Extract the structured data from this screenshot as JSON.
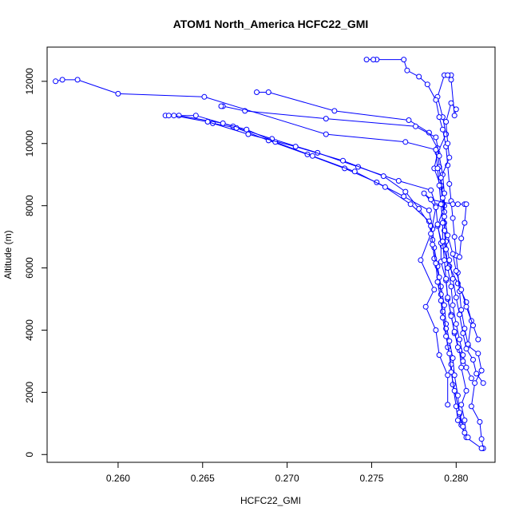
{
  "chart_data": {
    "type": "scatter",
    "title": "ATOM1 North_America HCFC22_GMI",
    "xlabel": "HCFC22_GMI",
    "ylabel": "Altitude (m)",
    "xlim": [
      0.2558,
      0.2823
    ],
    "ylim": [
      -250,
      13100
    ],
    "x_ticks": [
      0.26,
      0.265,
      0.27,
      0.275,
      0.28
    ],
    "x_tick_labels": [
      "0.260",
      "0.265",
      "0.270",
      "0.275",
      "0.280"
    ],
    "y_ticks": [
      0,
      2000,
      4000,
      6000,
      8000,
      10000,
      12000
    ],
    "y_tick_labels": [
      "0",
      "2000",
      "4000",
      "6000",
      "8000",
      "10000",
      "12000"
    ],
    "grid": false,
    "legend": "none",
    "series_color": "#0000ff",
    "series": [
      {
        "points": [
          [
            0.2816,
            200
          ],
          [
            0.2815,
            500
          ],
          [
            0.2814,
            1050
          ],
          [
            0.2809,
            1550
          ],
          [
            0.2811,
            2300
          ],
          [
            0.2815,
            2700
          ],
          [
            0.2813,
            3250
          ],
          [
            0.2807,
            3500
          ],
          [
            0.2809,
            4300
          ],
          [
            0.2806,
            4900
          ],
          [
            0.2801,
            5500
          ],
          [
            0.2796,
            6050
          ],
          [
            0.2792,
            6700
          ],
          [
            0.2789,
            7350
          ],
          [
            0.2793,
            8000
          ],
          [
            0.2791,
            8600
          ],
          [
            0.2787,
            9200
          ],
          [
            0.2789,
            9700
          ],
          [
            0.2794,
            10300
          ],
          [
            0.2792,
            10850
          ],
          [
            0.2789,
            11500
          ],
          [
            0.2793,
            12200
          ],
          [
            0.2797,
            12200
          ]
        ]
      },
      {
        "points": [
          [
            0.2815,
            200
          ],
          [
            0.2806,
            550
          ],
          [
            0.2805,
            1100
          ],
          [
            0.2803,
            1600
          ],
          [
            0.2806,
            2050
          ],
          [
            0.2803,
            2800
          ],
          [
            0.2802,
            3350
          ],
          [
            0.2799,
            3900
          ],
          [
            0.2797,
            4500
          ],
          [
            0.2795,
            5000
          ],
          [
            0.2794,
            5600
          ],
          [
            0.2791,
            6200
          ],
          [
            0.2791,
            6800
          ],
          [
            0.2789,
            7400
          ],
          [
            0.2788,
            8000
          ],
          [
            0.2785,
            8500
          ],
          [
            0.2766,
            8800
          ],
          [
            0.2742,
            9250
          ],
          [
            0.2718,
            9700
          ],
          [
            0.2691,
            10150
          ],
          [
            0.2668,
            10550
          ],
          [
            0.2646,
            10900
          ],
          [
            0.2628,
            10900
          ]
        ]
      },
      {
        "points": [
          [
            0.2807,
            550
          ],
          [
            0.2803,
            950
          ],
          [
            0.2802,
            1300
          ],
          [
            0.2801,
            1900
          ],
          [
            0.2799,
            2550
          ],
          [
            0.2798,
            3100
          ],
          [
            0.2796,
            3650
          ],
          [
            0.2794,
            4200
          ],
          [
            0.2793,
            4800
          ],
          [
            0.2791,
            5400
          ],
          [
            0.2789,
            6050
          ],
          [
            0.2787,
            6650
          ],
          [
            0.2786,
            7250
          ],
          [
            0.2784,
            7850
          ],
          [
            0.2769,
            8300
          ],
          [
            0.2753,
            8750
          ],
          [
            0.2734,
            9200
          ],
          [
            0.2712,
            9650
          ],
          [
            0.2689,
            10100
          ],
          [
            0.267,
            10500
          ],
          [
            0.2656,
            10650
          ]
        ]
      },
      {
        "points": [
          [
            0.2805,
            700
          ],
          [
            0.2801,
            1100
          ],
          [
            0.28,
            1550
          ],
          [
            0.2798,
            2250
          ],
          [
            0.2797,
            2900
          ],
          [
            0.2795,
            3450
          ],
          [
            0.2794,
            4050
          ],
          [
            0.2792,
            4600
          ],
          [
            0.2791,
            5150
          ],
          [
            0.279,
            5700
          ],
          [
            0.2787,
            6300
          ],
          [
            0.2786,
            6900
          ],
          [
            0.2784,
            7500
          ],
          [
            0.2773,
            8050
          ],
          [
            0.2758,
            8600
          ],
          [
            0.274,
            9100
          ],
          [
            0.2715,
            9600
          ],
          [
            0.2693,
            10050
          ],
          [
            0.2676,
            10450
          ],
          [
            0.2662,
            10650
          ],
          [
            0.2636,
            10900
          ],
          [
            0.263,
            10900
          ]
        ]
      },
      {
        "points": [
          [
            0.2804,
            900
          ],
          [
            0.2802,
            1350
          ],
          [
            0.2799,
            2050
          ],
          [
            0.2797,
            2650
          ],
          [
            0.2796,
            3250
          ],
          [
            0.2794,
            3800
          ],
          [
            0.2792,
            4400
          ],
          [
            0.2791,
            4950
          ],
          [
            0.2789,
            5550
          ],
          [
            0.2788,
            6150
          ],
          [
            0.2786,
            6750
          ],
          [
            0.2785,
            7350
          ],
          [
            0.2778,
            7900
          ],
          [
            0.277,
            8450
          ],
          [
            0.2757,
            8950
          ],
          [
            0.2733,
            9450
          ],
          [
            0.2705,
            9900
          ],
          [
            0.2677,
            10300
          ],
          [
            0.2653,
            10700
          ],
          [
            0.2633,
            10900
          ]
        ]
      },
      {
        "points": [
          [
            0.2816,
            2300
          ],
          [
            0.2812,
            2600
          ],
          [
            0.281,
            3050
          ],
          [
            0.2806,
            3400
          ],
          [
            0.2804,
            3900
          ],
          [
            0.2802,
            4500
          ],
          [
            0.28,
            5050
          ],
          [
            0.2798,
            5650
          ],
          [
            0.2796,
            6250
          ],
          [
            0.2794,
            6850
          ],
          [
            0.2793,
            7450
          ],
          [
            0.2792,
            8050
          ],
          [
            0.2791,
            8650
          ],
          [
            0.279,
            9250
          ],
          [
            0.2789,
            9850
          ],
          [
            0.2784,
            10350
          ],
          [
            0.2772,
            10750
          ],
          [
            0.2728,
            11050
          ],
          [
            0.2689,
            11650
          ],
          [
            0.2682,
            11650
          ]
        ]
      },
      {
        "points": [
          [
            0.2809,
            2450
          ],
          [
            0.2806,
            2800
          ],
          [
            0.2804,
            3200
          ],
          [
            0.2802,
            3700
          ],
          [
            0.28,
            4200
          ],
          [
            0.2798,
            4800
          ],
          [
            0.2797,
            5400
          ],
          [
            0.2795,
            6000
          ],
          [
            0.2794,
            6600
          ],
          [
            0.2793,
            7200
          ],
          [
            0.2793,
            7800
          ],
          [
            0.2793,
            8400
          ],
          [
            0.2792,
            9000
          ],
          [
            0.279,
            9600
          ],
          [
            0.2788,
            10200
          ],
          [
            0.2776,
            10550
          ],
          [
            0.2723,
            10800
          ],
          [
            0.2675,
            11050
          ],
          [
            0.2662,
            11200
          ],
          [
            0.2661,
            11200
          ]
        ]
      },
      {
        "points": [
          [
            0.2804,
            3000
          ],
          [
            0.2801,
            3450
          ],
          [
            0.2799,
            3950
          ],
          [
            0.2797,
            4450
          ],
          [
            0.2795,
            5050
          ],
          [
            0.2794,
            5650
          ],
          [
            0.2793,
            6250
          ],
          [
            0.2792,
            6850
          ],
          [
            0.2792,
            7450
          ],
          [
            0.2791,
            8050
          ],
          [
            0.279,
            8650
          ],
          [
            0.2789,
            9200
          ],
          [
            0.2788,
            9800
          ],
          [
            0.277,
            10050
          ],
          [
            0.2723,
            10300
          ],
          [
            0.2651,
            11500
          ],
          [
            0.26,
            11600
          ],
          [
            0.2576,
            12050
          ],
          [
            0.2567,
            12050
          ],
          [
            0.2563,
            12000
          ]
        ]
      },
      {
        "points": [
          [
            0.2807,
            3550
          ],
          [
            0.2805,
            4050
          ],
          [
            0.2803,
            4650
          ],
          [
            0.2802,
            5250
          ],
          [
            0.2801,
            5850
          ],
          [
            0.28,
            6400
          ],
          [
            0.2799,
            7000
          ],
          [
            0.2798,
            7600
          ],
          [
            0.2797,
            8150
          ],
          [
            0.2796,
            8700
          ],
          [
            0.2795,
            9300
          ],
          [
            0.2794,
            9900
          ],
          [
            0.2792,
            10450
          ],
          [
            0.279,
            10850
          ],
          [
            0.2788,
            11400
          ],
          [
            0.2783,
            11900
          ],
          [
            0.2778,
            12150
          ],
          [
            0.2771,
            12350
          ],
          [
            0.2769,
            12700
          ],
          [
            0.2753,
            12700
          ],
          [
            0.2751,
            12700
          ],
          [
            0.2747,
            12700
          ]
        ]
      },
      {
        "points": [
          [
            0.2813,
            3700
          ],
          [
            0.281,
            4150
          ],
          [
            0.2806,
            4750
          ],
          [
            0.2803,
            5300
          ],
          [
            0.28,
            5900
          ],
          [
            0.2798,
            6450
          ],
          [
            0.2795,
            7050
          ],
          [
            0.2793,
            7650
          ],
          [
            0.2792,
            8250
          ],
          [
            0.2791,
            8900
          ],
          [
            0.2796,
            9550
          ],
          [
            0.2795,
            10000
          ],
          [
            0.2794,
            10700
          ],
          [
            0.2797,
            11300
          ],
          [
            0.28,
            11100
          ],
          [
            0.2799,
            10900
          ],
          [
            0.2797,
            12050
          ],
          [
            0.2795,
            12200
          ]
        ]
      },
      {
        "points": [
          [
            0.2795,
            1600
          ],
          [
            0.2795,
            2550
          ],
          [
            0.279,
            3200
          ],
          [
            0.2788,
            4000
          ],
          [
            0.2782,
            4750
          ],
          [
            0.2787,
            5300
          ],
          [
            0.2779,
            6250
          ],
          [
            0.2785,
            7100
          ],
          [
            0.2788,
            7950
          ],
          [
            0.2781,
            8400
          ],
          [
            0.2785,
            8200
          ],
          [
            0.2798,
            8050
          ],
          [
            0.2801,
            8050
          ],
          [
            0.2805,
            8050
          ],
          [
            0.2806,
            8050
          ],
          [
            0.2805,
            7450
          ],
          [
            0.2803,
            6950
          ],
          [
            0.2802,
            6350
          ]
        ]
      }
    ]
  }
}
